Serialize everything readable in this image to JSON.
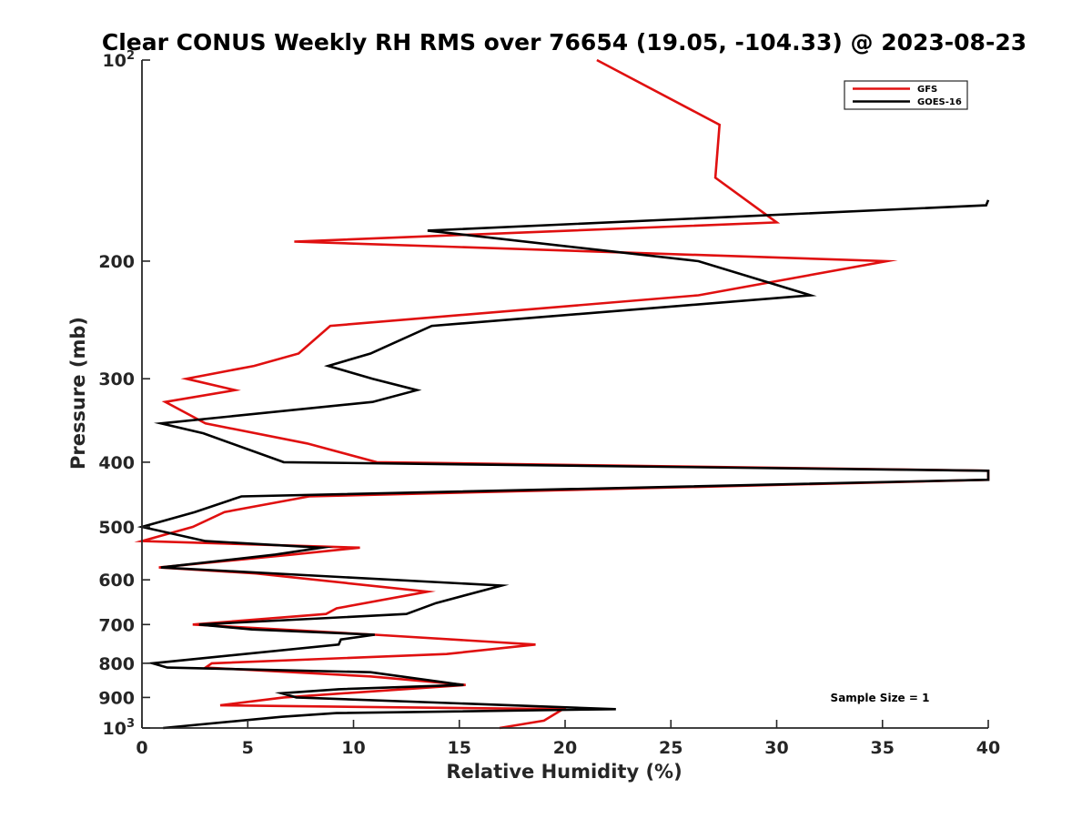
{
  "chart_data": {
    "type": "line",
    "title": "Clear CONUS Weekly RH RMS over 76654 (19.05, -104.33) @ 2023-08-23",
    "xlabel": "Relative Humidity (%)",
    "ylabel": "Pressure (mb)",
    "xlim": [
      0,
      40
    ],
    "ylim": [
      100,
      1000
    ],
    "y_scale": "log",
    "y_reversed": true,
    "grid": false,
    "legend_placement": "top-right",
    "x_ticks": [
      "0",
      "5",
      "10",
      "15",
      "20",
      "25",
      "30",
      "35",
      "40"
    ],
    "x_tick_values": [
      0,
      5,
      10,
      15,
      20,
      25,
      30,
      35,
      40
    ],
    "y_ticks": [
      {
        "value": 100,
        "base": "10",
        "sup": "2"
      },
      {
        "value": 200,
        "base": "200",
        "sup": ""
      },
      {
        "value": 300,
        "base": "300",
        "sup": ""
      },
      {
        "value": 400,
        "base": "400",
        "sup": ""
      },
      {
        "value": 500,
        "base": "500",
        "sup": ""
      },
      {
        "value": 600,
        "base": "600",
        "sup": ""
      },
      {
        "value": 700,
        "base": "700",
        "sup": ""
      },
      {
        "value": 800,
        "base": "800",
        "sup": ""
      },
      {
        "value": 900,
        "base": "900",
        "sup": ""
      },
      {
        "value": 1000,
        "base": "10",
        "sup": "3"
      }
    ],
    "annotation": "Sample Size = 1",
    "series": [
      {
        "name": "GFS",
        "color": "#e01010",
        "points": [
          [
            21.5,
            100
          ],
          [
            27.3,
            125
          ],
          [
            27.1,
            150
          ],
          [
            30.0,
            175
          ],
          [
            7.2,
            187
          ],
          [
            35.2,
            200
          ],
          [
            26.3,
            225
          ],
          [
            8.9,
            250
          ],
          [
            7.4,
            275
          ],
          [
            5.3,
            287
          ],
          [
            2.1,
            300
          ],
          [
            4.4,
            312
          ],
          [
            1.1,
            325
          ],
          [
            3.0,
            350
          ],
          [
            7.8,
            375
          ],
          [
            11.1,
            400
          ],
          [
            40.0,
            412
          ],
          [
            40.0,
            425
          ],
          [
            7.9,
            450
          ],
          [
            3.9,
            475
          ],
          [
            2.4,
            500
          ],
          [
            0,
            525
          ],
          [
            10.3,
            537
          ],
          [
            7.1,
            550
          ],
          [
            0.8,
            575
          ],
          [
            5.4,
            587
          ],
          [
            13.5,
            625
          ],
          [
            9.2,
            662
          ],
          [
            8.7,
            675
          ],
          [
            2.4,
            700
          ],
          [
            11.0,
            725
          ],
          [
            18.6,
            750
          ],
          [
            14.4,
            775
          ],
          [
            3.3,
            800
          ],
          [
            3.0,
            812
          ],
          [
            10.8,
            837
          ],
          [
            15.3,
            862
          ],
          [
            6.7,
            900
          ],
          [
            3.7,
            925
          ],
          [
            19.9,
            937
          ],
          [
            19.0,
            975
          ],
          [
            16.9,
            1000
          ]
        ]
      },
      {
        "name": "GOES-16",
        "color": "#000000",
        "points": [
          [
            40.0,
            162
          ],
          [
            39.9,
            165
          ],
          [
            13.5,
            180
          ],
          [
            26.3,
            200
          ],
          [
            31.6,
            225
          ],
          [
            13.7,
            250
          ],
          [
            10.8,
            275
          ],
          [
            8.8,
            287
          ],
          [
            10.9,
            300
          ],
          [
            13.0,
            312
          ],
          [
            10.9,
            325
          ],
          [
            0.9,
            350
          ],
          [
            2.9,
            362
          ],
          [
            6.7,
            400
          ],
          [
            40.0,
            412
          ],
          [
            40.0,
            425
          ],
          [
            4.7,
            450
          ],
          [
            2.5,
            475
          ],
          [
            0,
            500
          ],
          [
            3.0,
            525
          ],
          [
            8.5,
            537
          ],
          [
            6.3,
            550
          ],
          [
            0.9,
            575
          ],
          [
            17.0,
            612
          ],
          [
            13.9,
            650
          ],
          [
            12.5,
            675
          ],
          [
            2.7,
            700
          ],
          [
            5.2,
            712
          ],
          [
            11.0,
            725
          ],
          [
            9.4,
            737
          ],
          [
            9.3,
            750
          ],
          [
            0.5,
            800
          ],
          [
            1.2,
            812
          ],
          [
            10.8,
            825
          ],
          [
            15.2,
            862
          ],
          [
            9.3,
            875
          ],
          [
            6.6,
            887
          ],
          [
            7.3,
            900
          ],
          [
            22.4,
            937
          ],
          [
            9.2,
            950
          ],
          [
            6.6,
            962
          ],
          [
            1.0,
            1000
          ]
        ]
      }
    ]
  }
}
